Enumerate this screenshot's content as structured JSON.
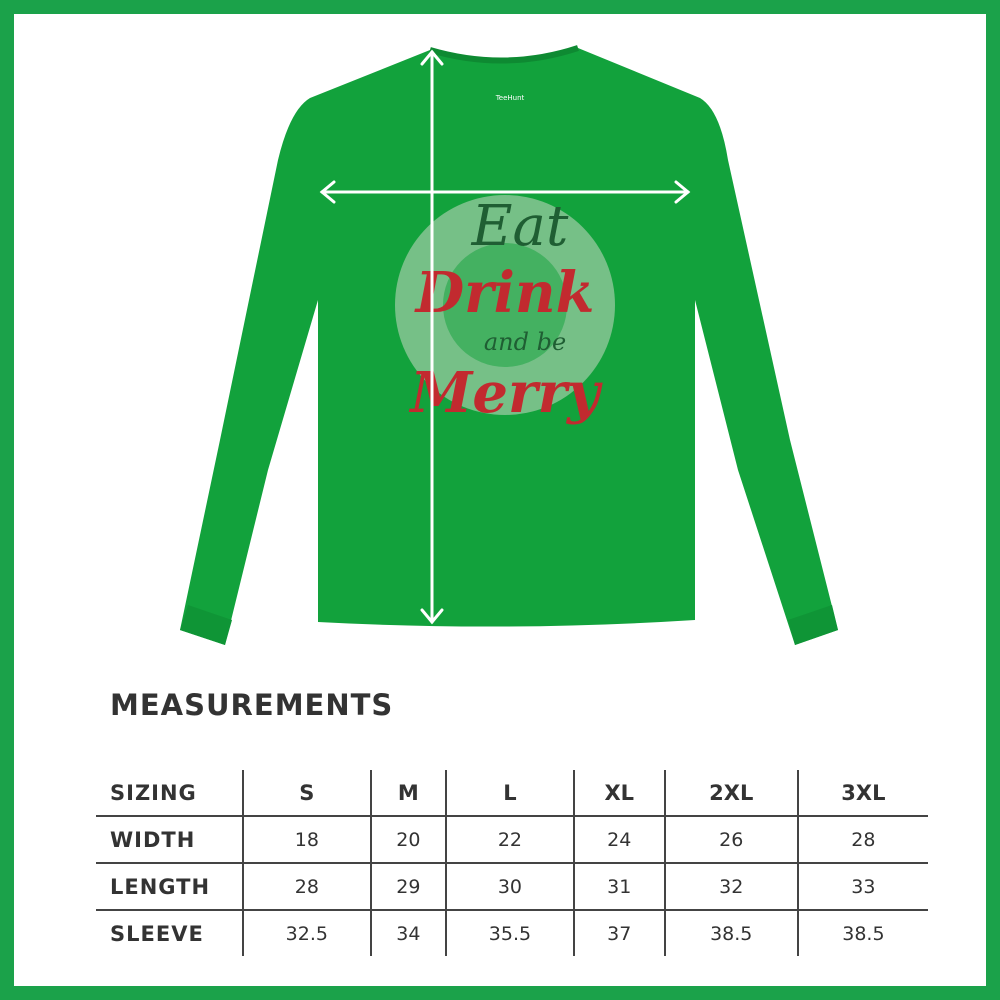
{
  "shirt": {
    "color": "#12a23c",
    "label_brand": "TeeHunt",
    "design_text": [
      "Eat",
      "Drink",
      "and be",
      "Merry"
    ]
  },
  "frame_color": "#1ba24a",
  "measurements": {
    "title": "MEASUREMENTS",
    "header": [
      "SIZING",
      "S",
      "M",
      "L",
      "XL",
      "2XL",
      "3XL"
    ],
    "rows": [
      {
        "label": "WIDTH",
        "values": [
          "18",
          "20",
          "22",
          "24",
          "26",
          "28"
        ]
      },
      {
        "label": "LENGTH",
        "values": [
          "28",
          "29",
          "30",
          "31",
          "32",
          "33"
        ]
      },
      {
        "label": "SLEEVE",
        "values": [
          "32.5",
          "34",
          "35.5",
          "37",
          "38.5",
          "38.5"
        ]
      }
    ]
  }
}
